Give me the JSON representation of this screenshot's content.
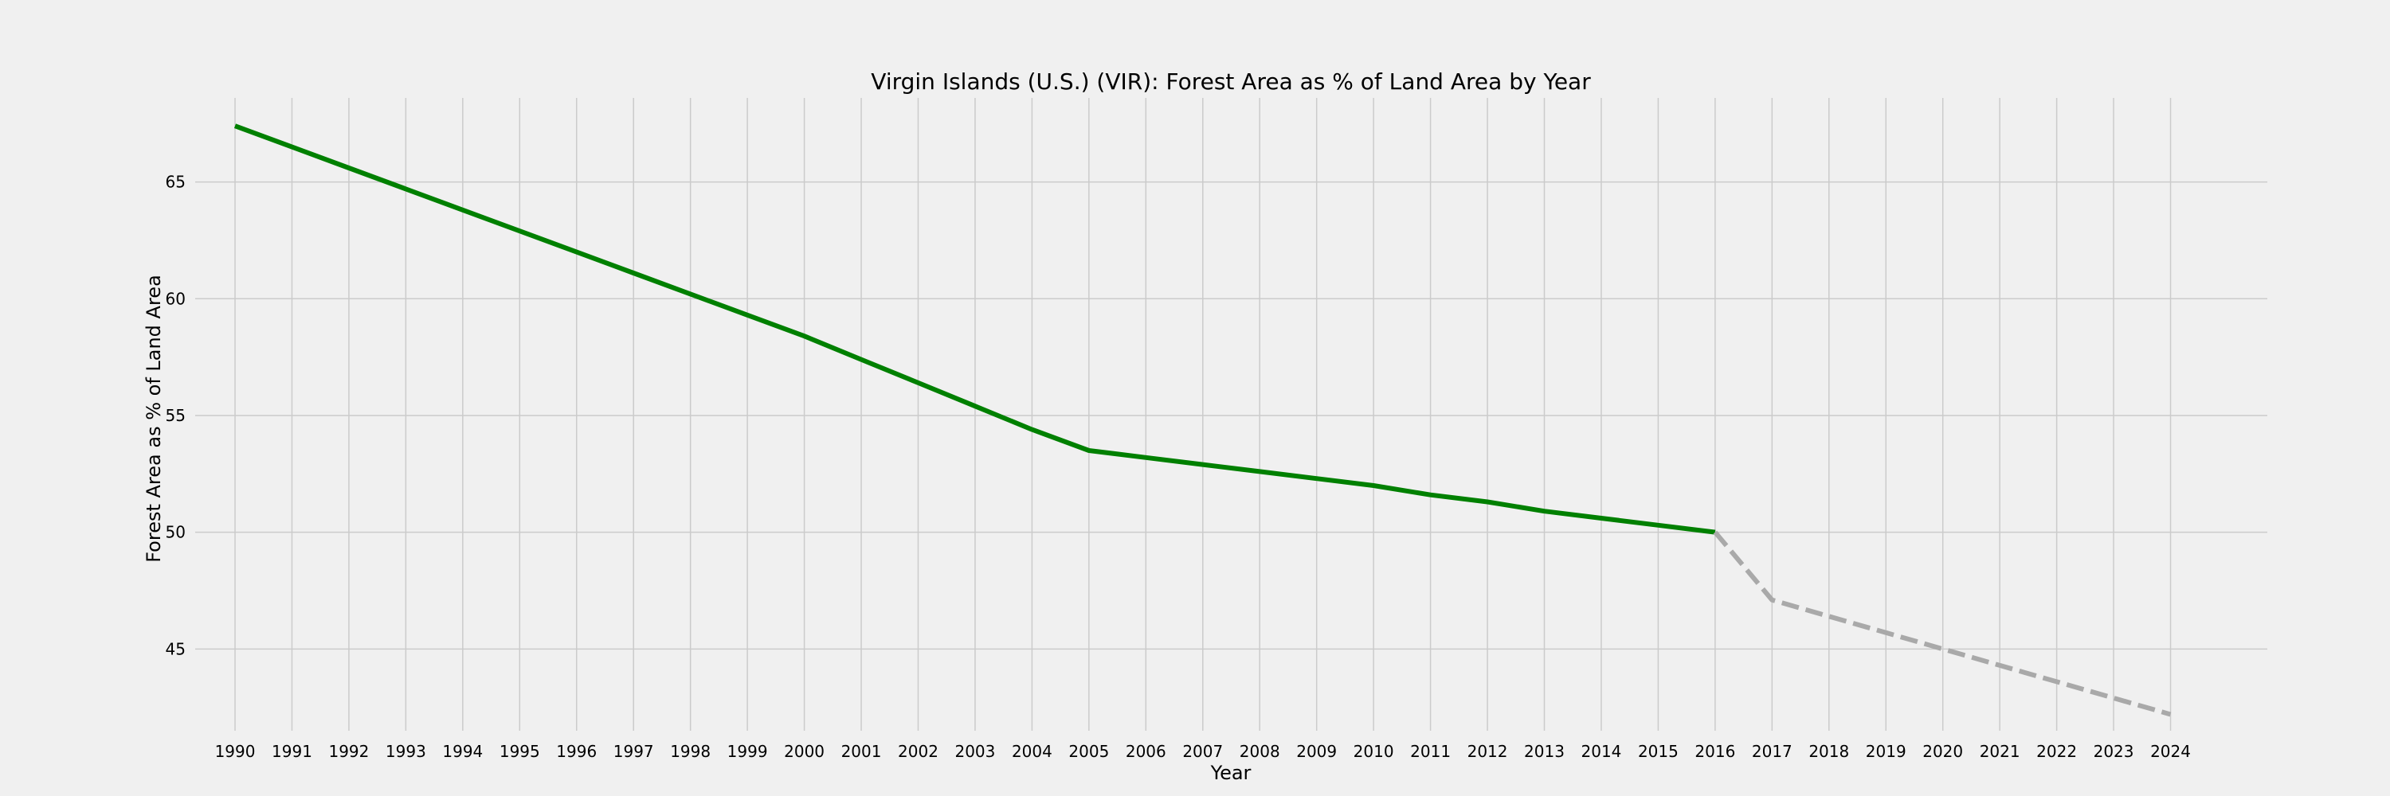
{
  "chart_data": {
    "type": "line",
    "title": "Virgin Islands (U.S.) (VIR): Forest Area as % of Land Area by Year",
    "xlabel": "Year",
    "ylabel": "Forest Area as % of Land Area",
    "xlim": [
      1989.3,
      2025.7
    ],
    "ylim": [
      41.5,
      68.6
    ],
    "x_ticks": [
      1990,
      1991,
      1992,
      1993,
      1994,
      1995,
      1996,
      1997,
      1998,
      1999,
      2000,
      2001,
      2002,
      2003,
      2004,
      2005,
      2006,
      2007,
      2008,
      2009,
      2010,
      2011,
      2012,
      2013,
      2014,
      2015,
      2016,
      2017,
      2018,
      2019,
      2020,
      2021,
      2022,
      2023,
      2024
    ],
    "y_ticks": [
      45,
      50,
      55,
      60,
      65
    ],
    "grid": true,
    "series": [
      {
        "style": "solid",
        "color": "#008000",
        "x": [
          1990,
          1991,
          1992,
          1993,
          1994,
          1995,
          1996,
          1997,
          1998,
          1999,
          2000,
          2001,
          2002,
          2003,
          2004,
          2005,
          2006,
          2007,
          2008,
          2009,
          2010,
          2011,
          2012,
          2013,
          2014,
          2015,
          2016
        ],
        "values": [
          67.4,
          66.5,
          65.6,
          64.7,
          63.8,
          62.9,
          62.0,
          61.1,
          60.2,
          59.3,
          58.4,
          57.4,
          56.4,
          55.4,
          54.4,
          53.5,
          53.2,
          52.9,
          52.6,
          52.3,
          52.0,
          51.6,
          51.3,
          50.9,
          50.6,
          50.3,
          50.0
        ]
      },
      {
        "style": "dashed",
        "color": "#a9a9a9",
        "x": [
          2016,
          2017,
          2018,
          2019,
          2020,
          2021,
          2022,
          2023,
          2024
        ],
        "values": [
          50.0,
          47.1,
          46.4,
          45.7,
          45.0,
          44.3,
          43.6,
          42.9,
          42.2
        ]
      }
    ]
  }
}
